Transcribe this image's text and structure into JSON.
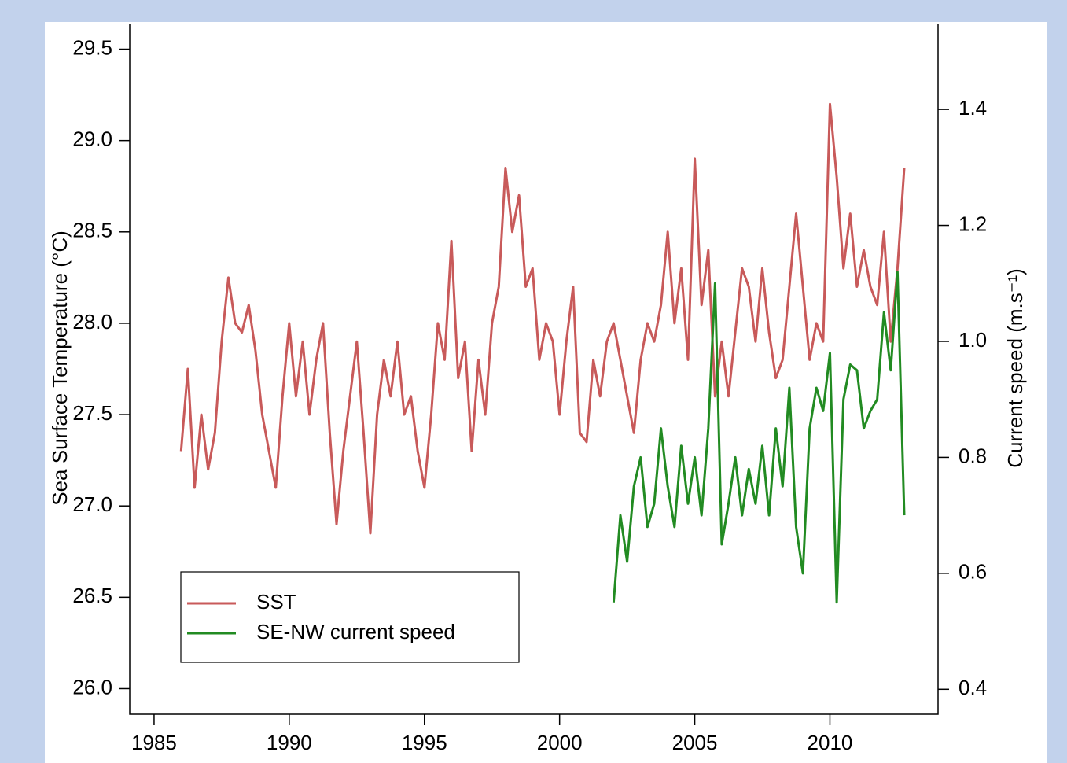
{
  "chart_data": {
    "type": "line",
    "x_ticks_note_free": null,
    "y_label": "Sea Surface Temperature (°C)",
    "y2_label": "Current speed  (m.s⁻¹)",
    "xlim": [
      1984.1,
      2014.0
    ],
    "xticks": [
      1985,
      1990,
      1995,
      2000,
      2005,
      2010
    ],
    "ylim": [
      25.86,
      29.64
    ],
    "yticks": [
      {
        "value": 26,
        "label": "26.0"
      },
      26.5,
      {
        "value": 27,
        "label": "27.0"
      },
      27.5,
      {
        "value": 28,
        "label": "28.0"
      },
      28.5,
      {
        "value": 29,
        "label": "29.0"
      },
      29.5
    ],
    "y2lim": [
      0.357,
      1.548
    ],
    "y2ticks": [
      0.4,
      0.6,
      0.8,
      {
        "value": 1,
        "label": "1.0"
      },
      1.2,
      1.4
    ],
    "legend": "bottom-left",
    "x": [
      1986,
      1986.25,
      1986.5,
      1986.75,
      1987,
      1987.25,
      1987.5,
      1987.75,
      1988,
      1988.25,
      1988.5,
      1988.75,
      1989,
      1989.25,
      1989.5,
      1989.75,
      1990,
      1990.25,
      1990.5,
      1990.75,
      1991,
      1991.25,
      1991.5,
      1991.75,
      1992,
      1992.25,
      1992.5,
      1992.75,
      1993,
      1993.25,
      1993.5,
      1993.75,
      1994,
      1994.25,
      1994.5,
      1994.75,
      1995,
      1995.25,
      1995.5,
      1995.75,
      1996,
      1996.25,
      1996.5,
      1996.75,
      1997,
      1997.25,
      1997.5,
      1997.75,
      1998,
      1998.25,
      1998.5,
      1998.75,
      1999,
      1999.25,
      1999.5,
      1999.75,
      2000,
      2000.25,
      2000.5,
      2000.75,
      2001,
      2001.25,
      2001.5,
      2001.75,
      2002,
      2002.25,
      2002.5,
      2002.75,
      2003,
      2003.25,
      2003.5,
      2003.75,
      2004,
      2004.25,
      2004.5,
      2004.75,
      2005,
      2005.25,
      2005.5,
      2005.75,
      2006,
      2006.25,
      2006.5,
      2006.75,
      2007,
      2007.25,
      2007.5,
      2007.75,
      2008,
      2008.25,
      2008.5,
      2008.75,
      2009,
      2009.25,
      2009.5,
      2009.75,
      2010,
      2010.25,
      2010.5,
      2010.75,
      2011,
      2011.25,
      2011.5,
      2011.75,
      2012,
      2012.25,
      2012.5,
      2012.75
    ],
    "series": [
      {
        "name": "SST",
        "color": "#c85a5a",
        "values": [
          27.3,
          27.75,
          27.1,
          27.5,
          27.2,
          27.4,
          27.9,
          28.25,
          28.0,
          27.95,
          28.1,
          27.85,
          27.5,
          27.3,
          27.1,
          27.6,
          28.0,
          27.6,
          27.9,
          27.5,
          27.8,
          28.0,
          27.4,
          26.9,
          27.3,
          27.6,
          27.9,
          27.4,
          26.85,
          27.5,
          27.8,
          27.6,
          27.9,
          27.5,
          27.6,
          27.3,
          27.1,
          27.5,
          28.0,
          27.8,
          28.45,
          27.7,
          27.9,
          27.3,
          27.8,
          27.5,
          28.0,
          28.2,
          28.85,
          28.5,
          28.7,
          28.2,
          28.3,
          27.8,
          28.0,
          27.9,
          27.5,
          27.9,
          28.2,
          27.4,
          27.35,
          27.8,
          27.6,
          27.9,
          28.0,
          27.8,
          27.6,
          27.4,
          27.8,
          28.0,
          27.9,
          28.1,
          28.5,
          28.0,
          28.3,
          27.8,
          28.9,
          28.1,
          28.4,
          27.6,
          27.9,
          27.6,
          27.95,
          28.3,
          28.2,
          27.9,
          28.3,
          27.95,
          27.7,
          27.8,
          28.2,
          28.6,
          28.2,
          27.8,
          28.0,
          27.9,
          29.2,
          28.8,
          28.3,
          28.6,
          28.2,
          28.4,
          28.2,
          28.1,
          28.5,
          27.9,
          28.3,
          28.85
        ]
      },
      {
        "name": "SE-NW current speed",
        "color": "#228b22",
        "axis": "y2",
        "values": [
          null,
          null,
          null,
          null,
          null,
          null,
          null,
          null,
          null,
          null,
          null,
          null,
          null,
          null,
          null,
          null,
          null,
          null,
          null,
          null,
          null,
          null,
          null,
          null,
          null,
          null,
          null,
          null,
          null,
          null,
          null,
          null,
          null,
          null,
          null,
          null,
          null,
          null,
          null,
          null,
          null,
          null,
          null,
          null,
          null,
          null,
          null,
          null,
          null,
          null,
          null,
          null,
          null,
          null,
          null,
          null,
          null,
          null,
          null,
          null,
          null,
          null,
          null,
          null,
          0.55,
          0.7,
          0.62,
          0.75,
          0.8,
          0.68,
          0.72,
          0.85,
          0.75,
          0.68,
          0.82,
          0.72,
          0.8,
          0.7,
          0.85,
          1.1,
          0.65,
          0.72,
          0.8,
          0.7,
          0.78,
          0.72,
          0.82,
          0.7,
          0.85,
          0.75,
          0.92,
          0.68,
          0.6,
          0.85,
          0.92,
          0.88,
          0.98,
          0.55,
          0.9,
          0.96,
          0.95,
          0.85,
          0.88,
          0.9,
          1.05,
          0.95,
          1.12,
          0.7
        ]
      }
    ]
  }
}
